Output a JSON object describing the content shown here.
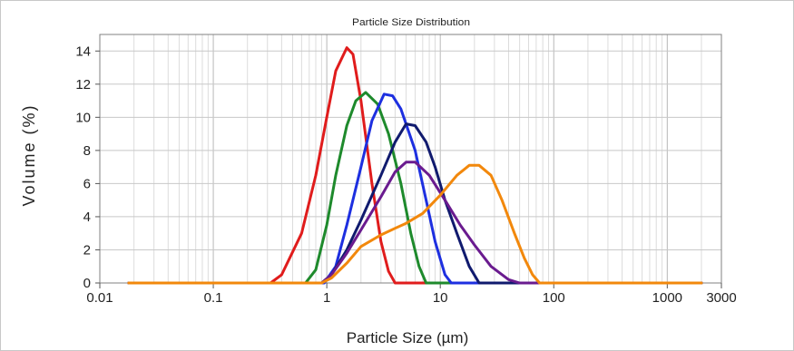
{
  "chart_data": {
    "type": "line",
    "title": "Particle Size Distribution",
    "xlabel": "Particle Size (µm)",
    "ylabel": "Volume (%)",
    "xscale": "log",
    "xlim": [
      0.01,
      3000
    ],
    "ylim": [
      0,
      15
    ],
    "x_tick_labels": [
      "0.01",
      "0.1",
      "1",
      "10",
      "100",
      "1000",
      "3000"
    ],
    "x_tick_values": [
      0.01,
      0.1,
      1,
      10,
      100,
      1000,
      3000
    ],
    "y_ticks": [
      0,
      2,
      4,
      6,
      8,
      10,
      12,
      14
    ],
    "grid": true,
    "legend": "none",
    "series": [
      {
        "color": "#e01c1c",
        "points": [
          [
            0.018,
            0
          ],
          [
            0.32,
            0
          ],
          [
            0.4,
            0.5
          ],
          [
            0.6,
            3
          ],
          [
            0.8,
            6.5
          ],
          [
            1.0,
            10
          ],
          [
            1.2,
            12.8
          ],
          [
            1.5,
            14.2
          ],
          [
            1.7,
            13.8
          ],
          [
            2.0,
            11
          ],
          [
            2.5,
            6
          ],
          [
            3.0,
            2.5
          ],
          [
            3.5,
            0.7
          ],
          [
            4.0,
            0
          ],
          [
            2000,
            0
          ]
        ]
      },
      {
        "color": "#1e8a2c",
        "points": [
          [
            0.018,
            0
          ],
          [
            0.65,
            0
          ],
          [
            0.8,
            0.8
          ],
          [
            1.0,
            3.5
          ],
          [
            1.2,
            6.5
          ],
          [
            1.5,
            9.5
          ],
          [
            1.8,
            11
          ],
          [
            2.2,
            11.5
          ],
          [
            2.8,
            10.8
          ],
          [
            3.5,
            9
          ],
          [
            4.5,
            6
          ],
          [
            5.5,
            3
          ],
          [
            6.5,
            1
          ],
          [
            7.5,
            0
          ],
          [
            2000,
            0
          ]
        ]
      },
      {
        "color": "#1d2fe0",
        "points": [
          [
            0.018,
            0
          ],
          [
            0.95,
            0
          ],
          [
            1.2,
            1
          ],
          [
            1.5,
            3.5
          ],
          [
            2.0,
            7
          ],
          [
            2.5,
            9.8
          ],
          [
            3.2,
            11.4
          ],
          [
            3.8,
            11.3
          ],
          [
            4.5,
            10.5
          ],
          [
            6,
            8
          ],
          [
            7.5,
            5
          ],
          [
            9,
            2.5
          ],
          [
            11,
            0.5
          ],
          [
            12.5,
            0
          ],
          [
            2000,
            0
          ]
        ]
      },
      {
        "color": "#101a6e",
        "points": [
          [
            0.018,
            0
          ],
          [
            0.9,
            0
          ],
          [
            1.1,
            0.5
          ],
          [
            1.5,
            2
          ],
          [
            2,
            3.8
          ],
          [
            3,
            6.5
          ],
          [
            4,
            8.5
          ],
          [
            5,
            9.6
          ],
          [
            6,
            9.5
          ],
          [
            7.5,
            8.5
          ],
          [
            9,
            7
          ],
          [
            11,
            5
          ],
          [
            14,
            3
          ],
          [
            18,
            1
          ],
          [
            22,
            0
          ],
          [
            2000,
            0
          ]
        ]
      },
      {
        "color": "#6a1b8f",
        "points": [
          [
            0.018,
            0
          ],
          [
            0.9,
            0
          ],
          [
            1.1,
            0.5
          ],
          [
            1.5,
            1.8
          ],
          [
            2,
            3.2
          ],
          [
            3,
            5.2
          ],
          [
            4,
            6.7
          ],
          [
            5,
            7.3
          ],
          [
            6,
            7.3
          ],
          [
            8,
            6.5
          ],
          [
            11,
            5
          ],
          [
            15,
            3.5
          ],
          [
            20,
            2.3
          ],
          [
            28,
            1
          ],
          [
            40,
            0.2
          ],
          [
            50,
            0
          ],
          [
            2000,
            0
          ]
        ]
      },
      {
        "color": "#f2880c",
        "points": [
          [
            0.018,
            0
          ],
          [
            0.9,
            0
          ],
          [
            1.1,
            0.3
          ],
          [
            1.5,
            1.2
          ],
          [
            2,
            2.2
          ],
          [
            3,
            2.9
          ],
          [
            4,
            3.3
          ],
          [
            5,
            3.6
          ],
          [
            7,
            4.2
          ],
          [
            10,
            5.3
          ],
          [
            14,
            6.5
          ],
          [
            18,
            7.1
          ],
          [
            22,
            7.1
          ],
          [
            28,
            6.5
          ],
          [
            35,
            5
          ],
          [
            45,
            3
          ],
          [
            55,
            1.5
          ],
          [
            65,
            0.5
          ],
          [
            75,
            0
          ],
          [
            2000,
            0
          ]
        ]
      }
    ]
  }
}
